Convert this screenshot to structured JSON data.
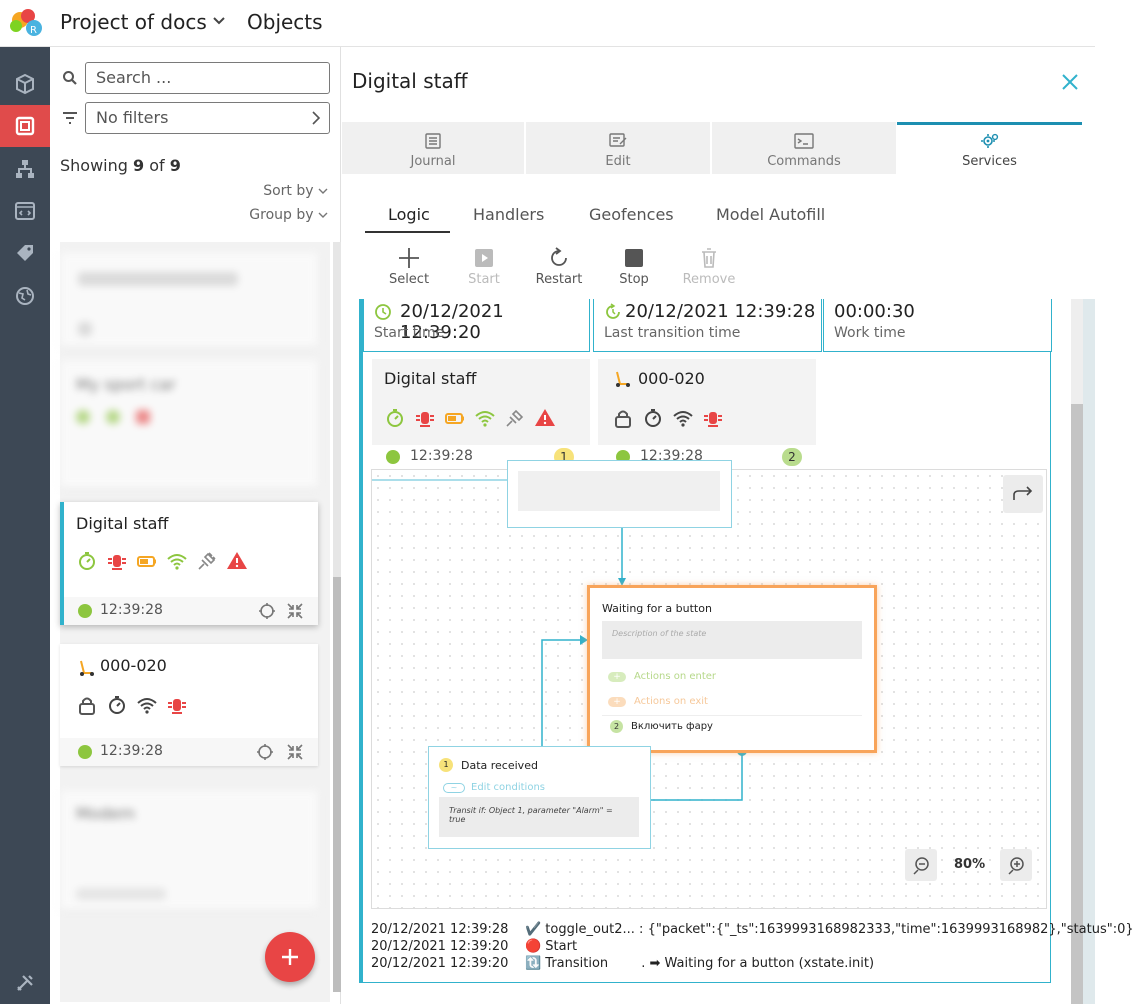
{
  "header": {
    "project_title": "Project of docs",
    "section_title": "Objects"
  },
  "sidebar": {
    "items": [
      {
        "icon": "cube-icon",
        "active": false
      },
      {
        "icon": "objects-icon",
        "active": true
      },
      {
        "icon": "hierarchy-icon",
        "active": false
      },
      {
        "icon": "code-window-icon",
        "active": false
      },
      {
        "icon": "tag-icon",
        "active": false
      },
      {
        "icon": "globe-icon",
        "active": false
      }
    ],
    "bottom_icon": "tools-icon"
  },
  "list": {
    "search_placeholder": "Search ...",
    "filters_label": "No filters",
    "showing_prefix": "Showing",
    "showing_count": "9",
    "showing_of": "of",
    "showing_total": "9",
    "sort_label": "Sort by",
    "group_label": "Group by",
    "cards": [
      {
        "title": "My sport car",
        "blurred": true
      },
      {
        "title": "Digital staff",
        "time": "12:39:28",
        "selected": true
      },
      {
        "title": "000-020",
        "time": "12:39:28",
        "selected": false
      },
      {
        "title": "Modem",
        "blurred": true
      }
    ]
  },
  "detail": {
    "title": "Digital staff",
    "tabs": [
      {
        "label": "Journal",
        "icon": "journal-icon"
      },
      {
        "label": "Edit",
        "icon": "edit-icon"
      },
      {
        "label": "Commands",
        "icon": "terminal-icon"
      },
      {
        "label": "Services",
        "icon": "gears-icon",
        "active": true
      }
    ],
    "subtabs": [
      "Logic",
      "Handlers",
      "Geofences",
      "Model Autofill"
    ],
    "tools": [
      {
        "label": "Select",
        "enabled": true
      },
      {
        "label": "Start",
        "enabled": false
      },
      {
        "label": "Restart",
        "enabled": true
      },
      {
        "label": "Stop",
        "enabled": true
      },
      {
        "label": "Remove",
        "enabled": false
      }
    ],
    "stats": [
      {
        "value": "20/12/2021 12:39:20",
        "label": "Start time"
      },
      {
        "value": "20/12/2021 12:39:28",
        "label": "Last transition time"
      },
      {
        "value": "00:00:30",
        "label": "Work time"
      }
    ],
    "mini_cards": [
      {
        "title": "Digital staff",
        "time": "12:39:28",
        "badge": "1"
      },
      {
        "title": "000-020",
        "time": "12:39:28",
        "badge": "2"
      }
    ],
    "diagram": {
      "state_title": "Waiting for a button",
      "state_desc_placeholder": "Description of the state",
      "actions_enter": "Actions on enter",
      "actions_exit": "Actions on exit",
      "action_item_num": "2",
      "action_item": "Включить фару",
      "transition_num": "1",
      "transition_title": "Data received",
      "edit_conditions": "Edit conditions",
      "transition_condition": "Transit if: Object 1, parameter \"Alarm\" = true",
      "zoom": "80%"
    },
    "logs": [
      {
        "time": "20/12/2021 12:39:28",
        "event": "✔️ toggle_out2... : {\"packet\":{\"_ts\":1639993168982333,\"time\":1639993168982},\"status\":0}"
      },
      {
        "time": "20/12/2021 12:39:20",
        "event": "🔴 Start"
      },
      {
        "time": "20/12/2021 12:39:20",
        "event": "🔃 Transition        . ➡ Waiting for a button (xstate.init)"
      }
    ]
  },
  "colors": {
    "accent": "#31b2cc",
    "danger": "#e84545",
    "rail": "#3d4855",
    "orange": "#f8a45a",
    "green": "#8dc63f"
  }
}
